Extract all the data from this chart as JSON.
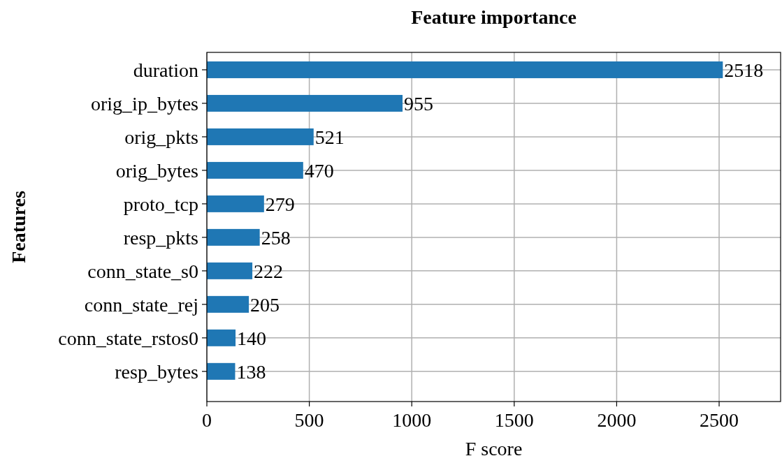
{
  "chart_data": {
    "type": "bar",
    "orientation": "horizontal",
    "title": "Feature importance",
    "xlabel": "F score",
    "ylabel": "Features",
    "categories": [
      "duration",
      "orig_ip_bytes",
      "orig_pkts",
      "orig_bytes",
      "proto_tcp",
      "resp_pkts",
      "conn_state_s0",
      "conn_state_rej",
      "conn_state_rstos0",
      "resp_bytes"
    ],
    "values": [
      2518,
      955,
      521,
      470,
      279,
      258,
      222,
      205,
      140,
      138
    ],
    "color": "#1f77b4",
    "xlim": [
      0,
      2800
    ],
    "xticks": [
      0,
      500,
      1000,
      1500,
      2000,
      2500
    ],
    "grid": true,
    "data_labels": true
  }
}
